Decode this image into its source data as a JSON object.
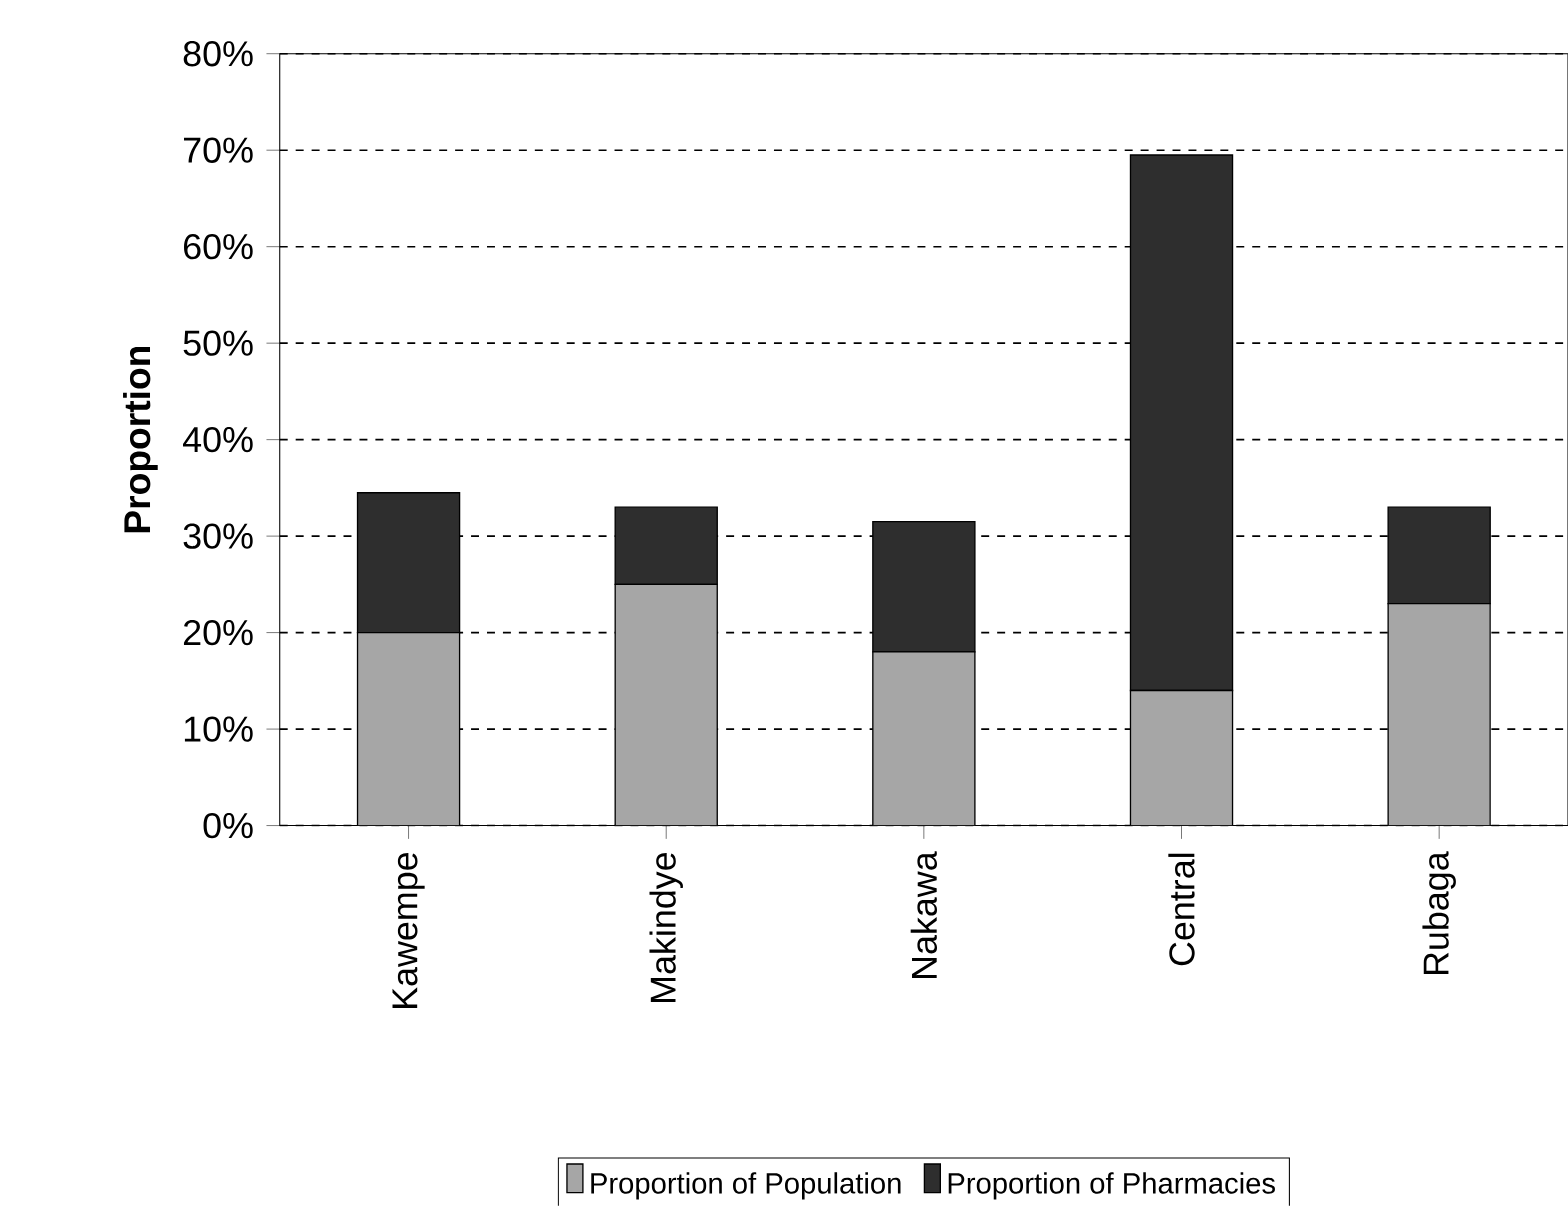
{
  "chart_data": {
    "type": "bar",
    "stacked": true,
    "ylabel": "Proportion",
    "categories": [
      "Kawempe",
      "Makindye",
      "Nakawa",
      "Central",
      "Rubaga"
    ],
    "series": [
      {
        "name": "Proportion of Population",
        "color": "#a6a6a6",
        "values": [
          20,
          25,
          18,
          14,
          23
        ]
      },
      {
        "name": "Proportion of Pharmacies",
        "color": "#2e2e2e",
        "values": [
          14.5,
          8,
          13.5,
          55.5,
          10
        ]
      }
    ],
    "ylim": [
      0,
      80
    ],
    "yticks": [
      {
        "value": 0,
        "label": "0%"
      },
      {
        "value": 10,
        "label": "10%"
      },
      {
        "value": 20,
        "label": "20%"
      },
      {
        "value": 30,
        "label": "30%"
      },
      {
        "value": 40,
        "label": "40%"
      },
      {
        "value": 50,
        "label": "50%"
      },
      {
        "value": 60,
        "label": "60%"
      },
      {
        "value": 70,
        "label": "70%"
      },
      {
        "value": 80,
        "label": "80%"
      }
    ],
    "grid": "y",
    "legend": "bottom"
  }
}
